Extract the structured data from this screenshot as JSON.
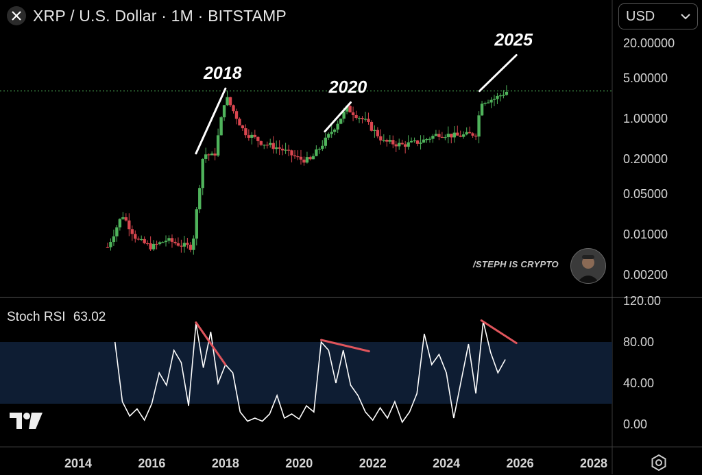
{
  "header": {
    "title": "XRP / U.S. Dollar · 1M · BITSTAMP",
    "icon": "x-logo-icon"
  },
  "currency_select": {
    "value": "USD",
    "icon": "chevron-down-icon"
  },
  "watermark": {
    "text": "/STEPH IS CRYPTO"
  },
  "colors": {
    "up": "#4fb35b",
    "down": "#d9464f",
    "stoch": "#ffffff",
    "band": "#0e1d33",
    "trend": "#e0555c",
    "priceline": "#4fb35b"
  },
  "chart_data": [
    {
      "type": "candlestick",
      "title": "XRP / U.S. Dollar · 1M · BITSTAMP",
      "yscale": "log",
      "y_ticks": [
        "20.00000",
        "5.00000",
        "1.00000",
        "0.20000",
        "0.05000",
        "0.01000",
        "0.00200"
      ],
      "x_ticks": [
        "2014",
        "2016",
        "2018",
        "2020",
        "2022",
        "2024",
        "2026",
        "2028"
      ],
      "current_price_level": 3.0,
      "annotations": [
        {
          "label": "2018",
          "from": [
            2017.2,
            0.25
          ],
          "to": [
            2018.0,
            3.3
          ]
        },
        {
          "label": "2020",
          "from": [
            2020.7,
            0.6
          ],
          "to": [
            2021.4,
            1.9
          ]
        },
        {
          "label": "2025",
          "from": [
            2024.9,
            3.0
          ],
          "to": [
            2025.9,
            12.5
          ]
        }
      ],
      "series": [
        {
          "x": [
            2014.8,
            2015.2,
            2015.6,
            2016.0,
            2016.4,
            2016.8,
            2017.1,
            2017.4,
            2017.7,
            2018.0,
            2018.5,
            2019.0,
            2019.5,
            2020.0,
            2020.3,
            2020.8,
            2021.3,
            2021.8,
            2022.3,
            2022.8,
            2023.3,
            2023.8,
            2024.3,
            2024.8,
            2024.95,
            2025.3,
            2025.7
          ],
          "y": [
            0.006,
            0.022,
            0.008,
            0.006,
            0.008,
            0.0065,
            0.006,
            0.25,
            0.22,
            2.5,
            0.6,
            0.38,
            0.3,
            0.2,
            0.19,
            0.5,
            1.5,
            0.9,
            0.4,
            0.35,
            0.4,
            0.55,
            0.5,
            0.55,
            2.0,
            2.2,
            3.1
          ]
        }
      ]
    },
    {
      "type": "line",
      "title": "Stoch RSI",
      "current_value": "63.02",
      "y_ticks": [
        "120.00",
        "80.00",
        "40.00",
        "0.00"
      ],
      "band": [
        20,
        80
      ],
      "x": [
        2015.0,
        2015.2,
        2015.4,
        2015.6,
        2015.8,
        2016.0,
        2016.2,
        2016.4,
        2016.6,
        2016.8,
        2017.0,
        2017.2,
        2017.4,
        2017.6,
        2017.8,
        2018.0,
        2018.2,
        2018.4,
        2018.6,
        2018.8,
        2019.0,
        2019.2,
        2019.4,
        2019.6,
        2019.8,
        2020.0,
        2020.2,
        2020.4,
        2020.6,
        2020.8,
        2021.0,
        2021.2,
        2021.4,
        2021.6,
        2021.8,
        2022.0,
        2022.2,
        2022.4,
        2022.6,
        2022.8,
        2023.0,
        2023.2,
        2023.4,
        2023.6,
        2023.8,
        2024.0,
        2024.2,
        2024.4,
        2024.6,
        2024.8,
        2025.0,
        2025.2,
        2025.4,
        2025.6
      ],
      "y": [
        80,
        22,
        8,
        15,
        4,
        20,
        50,
        38,
        72,
        60,
        18,
        98,
        55,
        90,
        40,
        58,
        50,
        12,
        3,
        6,
        3,
        10,
        28,
        6,
        10,
        5,
        18,
        12,
        80,
        72,
        40,
        72,
        38,
        28,
        12,
        4,
        16,
        6,
        22,
        2,
        12,
        30,
        88,
        58,
        68,
        50,
        6,
        42,
        78,
        30,
        100,
        70,
        50,
        63
      ]
    }
  ]
}
